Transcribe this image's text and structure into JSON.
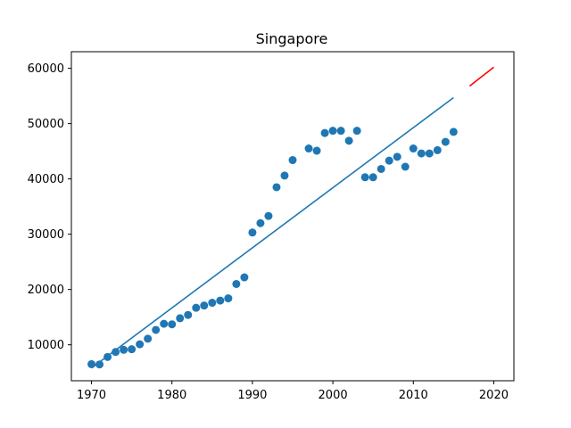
{
  "chart_data": {
    "type": "scatter",
    "title": "Singapore",
    "xlabel": "",
    "ylabel": "",
    "xlim": [
      1967.5,
      2022.5
    ],
    "ylim": [
      3500,
      63000
    ],
    "x_ticks": [
      1970,
      1980,
      1990,
      2000,
      2010,
      2020
    ],
    "y_ticks": [
      10000,
      20000,
      30000,
      40000,
      50000,
      60000
    ],
    "grid": false,
    "legend": "none",
    "colors": {
      "points": "#1f77b4",
      "fit_line": "#1f77b4",
      "forecast_line": "#ff0000"
    },
    "series": [
      {
        "kind": "scatter",
        "x": [
          1970,
          1971,
          1972,
          1973,
          1974,
          1975,
          1976,
          1977,
          1978,
          1979,
          1980,
          1981,
          1982,
          1983,
          1984,
          1985,
          1986,
          1987,
          1988,
          1989,
          1990,
          1991,
          1992,
          1993,
          1994,
          1995,
          1997,
          1998,
          1999,
          2000,
          2001,
          2002,
          2003,
          2004,
          2005,
          2006,
          2007,
          2008,
          2009,
          2010,
          2011,
          2012,
          2013,
          2014,
          2015
        ],
        "y": [
          6500,
          6450,
          7800,
          8700,
          9100,
          9200,
          10100,
          11100,
          12700,
          13800,
          13700,
          14800,
          15400,
          16700,
          17100,
          17600,
          18000,
          18400,
          21000,
          22200,
          30300,
          32000,
          33300,
          38500,
          40600,
          43400,
          45500,
          45100,
          48300,
          48700,
          48700,
          46900,
          48700,
          40300,
          40300,
          41800,
          43300,
          44000,
          42200,
          45500,
          44600,
          44600,
          45200,
          46700,
          48500
        ]
      },
      {
        "kind": "line",
        "x": [
          1970,
          2015
        ],
        "y": [
          5800,
          54700
        ]
      },
      {
        "kind": "line",
        "x": [
          2017,
          2020
        ],
        "y": [
          56800,
          60200
        ]
      }
    ]
  }
}
